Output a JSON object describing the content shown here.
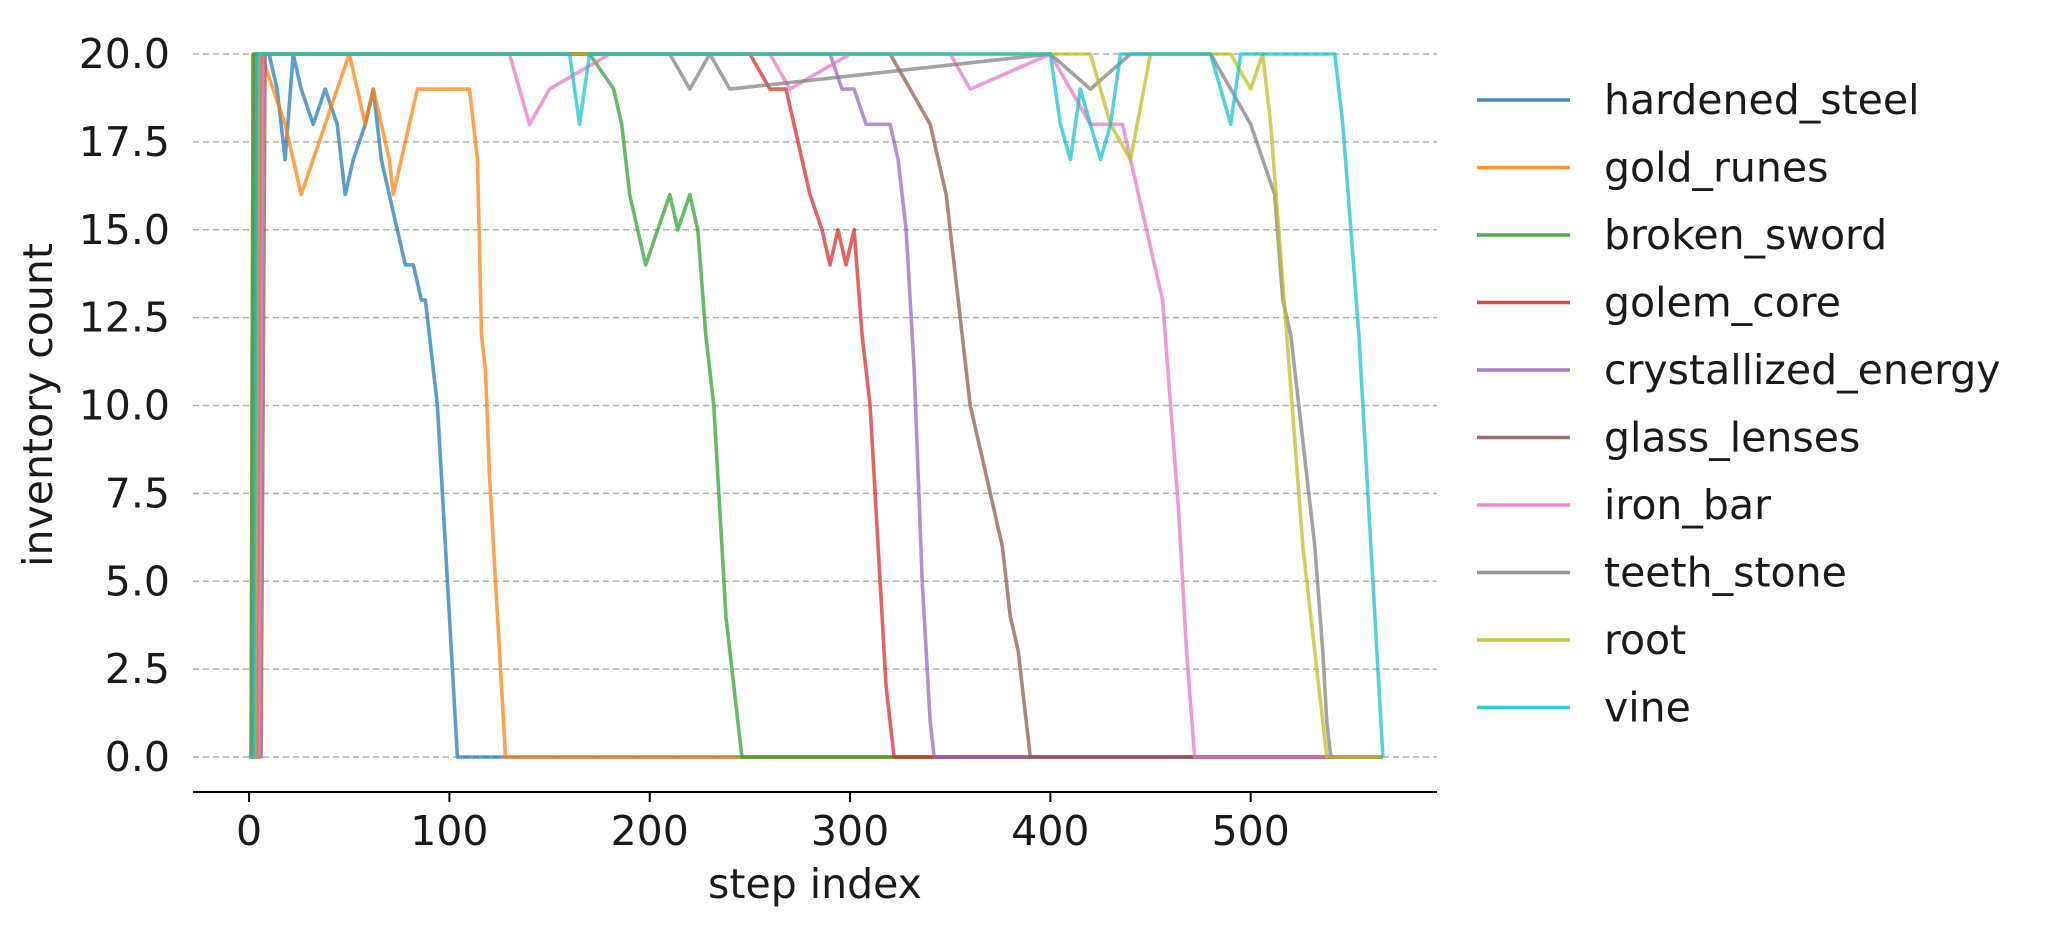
{
  "chart_data": {
    "type": "line",
    "xlabel": "step index",
    "ylabel": "inventory count",
    "xlim": [
      -28,
      593
    ],
    "ylim": [
      -1.9,
      20.0
    ],
    "xticks": [
      0,
      100,
      200,
      300,
      400,
      500
    ],
    "xtick_labels": [
      "0",
      "100",
      "200",
      "300",
      "400",
      "500"
    ],
    "yticks": [
      0,
      2.5,
      5,
      7.5,
      10,
      12.5,
      15,
      17.5,
      20
    ],
    "ytick_labels": [
      "0.0",
      "2.5",
      "5.0",
      "7.5",
      "10.0",
      "12.5",
      "15.0",
      "17.5",
      "20.0"
    ],
    "grid": "y-dashed",
    "legend_position": "right",
    "series": [
      {
        "name": "hardened_steel",
        "color": "#1f77b4",
        "x": [
          0,
          2,
          3,
          10,
          14,
          18,
          22,
          26,
          32,
          38,
          44,
          48,
          52,
          58,
          62,
          66,
          70,
          74,
          78,
          82,
          86,
          88,
          92,
          94,
          96,
          98,
          100,
          102,
          104,
          106,
          566
        ],
        "y": [
          0,
          0,
          20,
          20,
          19,
          17,
          20,
          19,
          18,
          19,
          18,
          16,
          17,
          18,
          19,
          17,
          16,
          15,
          14,
          14,
          13,
          13,
          11,
          10,
          8,
          6,
          4,
          2,
          0,
          0,
          0
        ]
      },
      {
        "name": "gold_runes",
        "color": "#ff7f0e",
        "x": [
          0,
          1,
          2,
          6,
          12,
          18,
          22,
          26,
          32,
          38,
          44,
          50,
          54,
          58,
          62,
          66,
          70,
          72,
          76,
          80,
          84,
          86,
          90,
          100,
          110,
          114,
          116,
          118,
          120,
          122,
          124,
          126,
          128,
          566
        ],
        "y": [
          0,
          0,
          20,
          20,
          19,
          18,
          17,
          16,
          17,
          18,
          19,
          20,
          19,
          18,
          19,
          18,
          17,
          16,
          17,
          18,
          19,
          19,
          19,
          19,
          19,
          17,
          12,
          11,
          8,
          6,
          4,
          2,
          0,
          0
        ]
      },
      {
        "name": "broken_sword",
        "color": "#2ca02c",
        "x": [
          0,
          1,
          2,
          170,
          182,
          186,
          190,
          194,
          198,
          204,
          210,
          214,
          220,
          224,
          228,
          232,
          234,
          236,
          238,
          240,
          242,
          244,
          246,
          566
        ],
        "y": [
          0,
          0,
          20,
          20,
          19,
          18,
          16,
          15,
          14,
          15,
          16,
          15,
          16,
          15,
          12,
          10,
          8,
          6,
          4,
          3,
          2,
          1,
          0,
          0
        ]
      },
      {
        "name": "golem_core",
        "color": "#d62728",
        "x": [
          0,
          4,
          6,
          8,
          250,
          260,
          268,
          272,
          276,
          280,
          286,
          290,
          294,
          298,
          302,
          306,
          308,
          310,
          312,
          314,
          316,
          318,
          320,
          322,
          566
        ],
        "y": [
          0,
          0,
          20,
          20,
          20,
          19,
          19,
          18,
          17,
          16,
          15,
          14,
          15,
          14,
          15,
          12,
          11,
          10,
          8,
          6,
          4,
          2,
          1,
          0,
          0
        ]
      },
      {
        "name": "crystallized_energy",
        "color": "#9467bd",
        "x": [
          0,
          3,
          5,
          290,
          296,
          302,
          308,
          312,
          316,
          320,
          324,
          328,
          332,
          334,
          336,
          338,
          340,
          342,
          566
        ],
        "y": [
          0,
          0,
          20,
          20,
          19,
          19,
          18,
          18,
          18,
          18,
          17,
          15,
          11,
          8,
          5,
          3,
          1,
          0,
          0
        ]
      },
      {
        "name": "glass_lenses",
        "color": "#8c564b",
        "x": [
          0,
          6,
          8,
          320,
          330,
          340,
          348,
          352,
          356,
          360,
          364,
          368,
          372,
          376,
          380,
          384,
          388,
          390,
          566
        ],
        "y": [
          0,
          0,
          20,
          20,
          19,
          18,
          16,
          14,
          12,
          10,
          9,
          8,
          7,
          6,
          4,
          3,
          1,
          0,
          0
        ]
      },
      {
        "name": "iron_bar",
        "color": "#e377c2",
        "x": [
          0,
          5,
          7,
          130,
          140,
          150,
          180,
          260,
          270,
          300,
          350,
          360,
          400,
          420,
          436,
          440,
          444,
          448,
          452,
          456,
          460,
          464,
          468,
          472,
          566
        ],
        "y": [
          0,
          0,
          20,
          20,
          18,
          19,
          20,
          20,
          19,
          20,
          20,
          19,
          20,
          18,
          18,
          17,
          16,
          15,
          14,
          13,
          10,
          7,
          3,
          0,
          0
        ]
      },
      {
        "name": "teeth_stone",
        "color": "#7f7f7f",
        "x": [
          0,
          2,
          4,
          210,
          220,
          230,
          240,
          400,
          420,
          440,
          480,
          490,
          500,
          506,
          512,
          516,
          520,
          524,
          528,
          532,
          536,
          538,
          540,
          566
        ],
        "y": [
          0,
          0,
          20,
          20,
          19,
          20,
          19,
          20,
          19,
          20,
          20,
          19,
          18,
          17,
          16,
          13,
          12,
          10,
          8,
          6,
          3,
          1,
          0,
          0
        ]
      },
      {
        "name": "root",
        "color": "#bcbd22",
        "x": [
          0,
          3,
          5,
          420,
          430,
          440,
          450,
          490,
          500,
          506,
          510,
          514,
          518,
          522,
          526,
          530,
          534,
          538,
          542,
          566
        ],
        "y": [
          0,
          0,
          20,
          20,
          18,
          17,
          20,
          20,
          19,
          20,
          18,
          15,
          12,
          9,
          6,
          4,
          2,
          0,
          0,
          0
        ]
      },
      {
        "name": "vine",
        "color": "#17becf",
        "x": [
          0,
          2,
          4,
          160,
          165,
          170,
          400,
          405,
          410,
          415,
          420,
          425,
          430,
          435,
          440,
          480,
          490,
          495,
          500,
          542,
          546,
          550,
          554,
          558,
          562,
          566
        ],
        "y": [
          0,
          0,
          20,
          20,
          18,
          20,
          20,
          18,
          17,
          19,
          18,
          17,
          18,
          20,
          20,
          20,
          18,
          20,
          20,
          20,
          18,
          15,
          12,
          8,
          4,
          0
        ]
      }
    ]
  }
}
